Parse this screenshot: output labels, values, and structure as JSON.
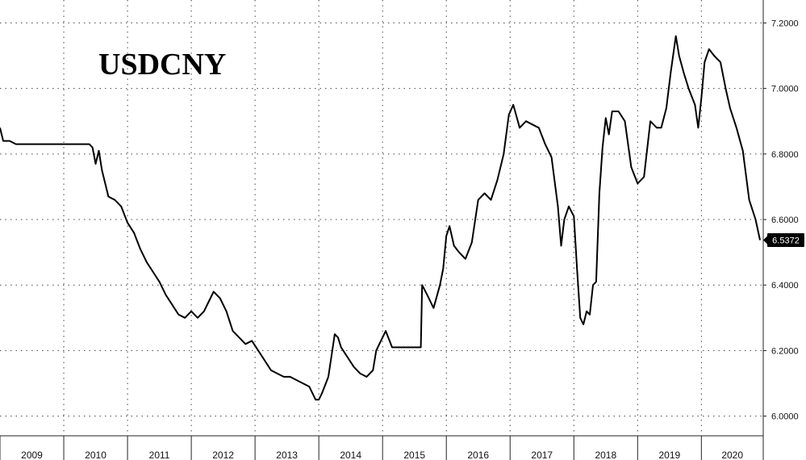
{
  "chart_data": {
    "type": "line",
    "title": "USDCNY",
    "series": [],
    "last_value_label": "6.5372",
    "y_ticks": [
      "6.0000",
      "6.2000",
      "6.4000",
      "6.6000",
      "6.8000",
      "7.0000",
      "7.2000"
    ],
    "x_ticks": [
      "2009",
      "2010",
      "2011",
      "2012",
      "2013",
      "2014",
      "2015",
      "2016",
      "2017",
      "2018",
      "2019",
      "2020"
    ],
    "ylim": [
      5.94,
      7.27
    ],
    "xlim": [
      2009.0,
      2020.97
    ],
    "grid": true,
    "y_axis_side": "right",
    "colors": {
      "line": "#000000",
      "grid": "#444444",
      "badge_bg": "#000000",
      "badge_text": "#ffffff"
    },
    "x": [
      2009.0,
      2009.05,
      2009.15,
      2009.25,
      2009.35,
      2009.5,
      2009.65,
      2009.8,
      2009.95,
      2010.1,
      2010.25,
      2010.4,
      2010.45,
      2010.48,
      2010.5,
      2010.55,
      2010.6,
      2010.7,
      2010.8,
      2010.9,
      2011.0,
      2011.1,
      2011.2,
      2011.3,
      2011.4,
      2011.5,
      2011.6,
      2011.7,
      2011.8,
      2011.9,
      2012.0,
      2012.1,
      2012.2,
      2012.3,
      2012.35,
      2012.45,
      2012.55,
      2012.65,
      2012.75,
      2012.85,
      2012.95,
      2013.05,
      2013.15,
      2013.25,
      2013.35,
      2013.45,
      2013.55,
      2013.65,
      2013.75,
      2013.85,
      2013.95,
      2014.0,
      2014.05,
      2014.15,
      2014.25,
      2014.3,
      2014.35,
      2014.45,
      2014.55,
      2014.65,
      2014.75,
      2014.85,
      2014.9,
      2014.95,
      2015.05,
      2015.15,
      2015.25,
      2015.35,
      2015.55,
      2015.6,
      2015.62,
      2015.7,
      2015.8,
      2015.9,
      2015.95,
      2016.0,
      2016.05,
      2016.12,
      2016.2,
      2016.3,
      2016.4,
      2016.5,
      2016.6,
      2016.7,
      2016.8,
      2016.9,
      2016.98,
      2017.05,
      2017.15,
      2017.25,
      2017.35,
      2017.45,
      2017.55,
      2017.65,
      2017.75,
      2017.8,
      2017.85,
      2017.92,
      2018.0,
      2018.05,
      2018.1,
      2018.15,
      2018.2,
      2018.25,
      2018.3,
      2018.35,
      2018.4,
      2018.45,
      2018.5,
      2018.55,
      2018.6,
      2018.7,
      2018.8,
      2018.9,
      2019.0,
      2019.1,
      2019.2,
      2019.3,
      2019.37,
      2019.45,
      2019.52,
      2019.6,
      2019.65,
      2019.72,
      2019.8,
      2019.9,
      2019.95,
      2020.0,
      2020.05,
      2020.12,
      2020.2,
      2020.3,
      2020.38,
      2020.45,
      2020.55,
      2020.65,
      2020.75,
      2020.85,
      2020.92
    ],
    "values": [
      6.88,
      6.84,
      6.84,
      6.83,
      6.83,
      6.83,
      6.83,
      6.83,
      6.83,
      6.83,
      6.83,
      6.83,
      6.82,
      6.79,
      6.77,
      6.81,
      6.75,
      6.67,
      6.66,
      6.64,
      6.59,
      6.56,
      6.51,
      6.47,
      6.44,
      6.41,
      6.37,
      6.34,
      6.31,
      6.3,
      6.32,
      6.3,
      6.32,
      6.36,
      6.38,
      6.36,
      6.32,
      6.26,
      6.24,
      6.22,
      6.23,
      6.2,
      6.17,
      6.14,
      6.13,
      6.12,
      6.12,
      6.11,
      6.1,
      6.09,
      6.05,
      6.05,
      6.07,
      6.12,
      6.25,
      6.24,
      6.21,
      6.18,
      6.15,
      6.13,
      6.12,
      6.14,
      6.2,
      6.22,
      6.26,
      6.21,
      6.21,
      6.21,
      6.21,
      6.21,
      6.4,
      6.37,
      6.33,
      6.4,
      6.45,
      6.55,
      6.58,
      6.52,
      6.5,
      6.48,
      6.53,
      6.66,
      6.68,
      6.66,
      6.72,
      6.8,
      6.92,
      6.95,
      6.88,
      6.9,
      6.89,
      6.88,
      6.83,
      6.79,
      6.64,
      6.52,
      6.6,
      6.64,
      6.61,
      6.45,
      6.3,
      6.28,
      6.32,
      6.31,
      6.4,
      6.41,
      6.68,
      6.82,
      6.91,
      6.86,
      6.93,
      6.93,
      6.9,
      6.76,
      6.71,
      6.73,
      6.9,
      6.88,
      6.88,
      6.94,
      7.05,
      7.16,
      7.1,
      7.05,
      7.0,
      6.95,
      6.88,
      6.97,
      7.08,
      7.12,
      7.1,
      7.08,
      7.0,
      6.94,
      6.88,
      6.81,
      6.66,
      6.6,
      6.5372
    ]
  }
}
